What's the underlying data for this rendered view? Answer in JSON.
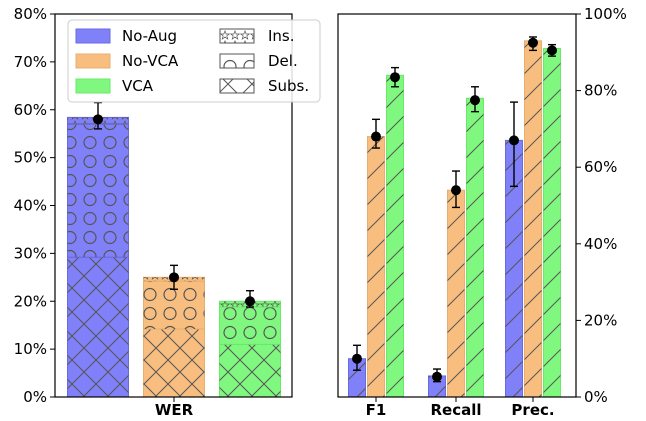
{
  "colors": {
    "No-Aug": "#8080f8",
    "No-VCA": "#f8be80",
    "VCA": "#80f880",
    "No-Aug-dark": "#6a6ae0",
    "No-VCA-dark": "#e8ae70",
    "VCA-dark": "#6ae86a",
    "hatch": "#555555",
    "errorbar": "#000000"
  },
  "legend": {
    "placement": "top-left of left panel",
    "methods": [
      "No-Aug",
      "No-VCA",
      "VCA"
    ],
    "error_types": [
      "Ins.",
      "Del.",
      "Subs."
    ]
  },
  "chart_data": [
    {
      "type": "bar",
      "stacked": true,
      "categories": [
        "WER"
      ],
      "ylim": [
        0,
        80
      ],
      "yticks": [
        "0%",
        "10%",
        "20%",
        "30%",
        "40%",
        "50%",
        "60%",
        "70%",
        "80%"
      ],
      "y_axis_side": "left",
      "grid": false,
      "series": [
        {
          "name": "No-Aug",
          "subs": 29.2,
          "del": 27.8,
          "ins": 1.4,
          "total": 58.4,
          "err_mean": 58.0,
          "err_lo": 56.0,
          "err_hi": 61.5
        },
        {
          "name": "No-VCA",
          "subs": 14.2,
          "del": 10.0,
          "ins": 0.8,
          "total": 25.0,
          "err_mean": 25.0,
          "err_lo": 22.5,
          "err_hi": 27.5
        },
        {
          "name": "VCA",
          "subs": 11.0,
          "del": 7.8,
          "ins": 1.2,
          "total": 20.0,
          "err_mean": 20.0,
          "err_lo": 18.8,
          "err_hi": 22.2
        }
      ]
    },
    {
      "type": "bar",
      "categories": [
        "F1",
        "Recall",
        "Prec."
      ],
      "ylim": [
        0,
        100
      ],
      "yticks": [
        "0%",
        "20%",
        "40%",
        "60%",
        "80%",
        "100%"
      ],
      "y_axis_side": "right",
      "grid": false,
      "series": [
        {
          "name": "No-Aug",
          "values": [
            10.0,
            5.5,
            67.0
          ],
          "markers": [
            10.0,
            5.3,
            67.0
          ],
          "err_lo": [
            7.0,
            4.0,
            55.0
          ],
          "err_hi": [
            13.5,
            7.3,
            77.0
          ]
        },
        {
          "name": "No-VCA",
          "values": [
            68.0,
            54.0,
            93.0
          ],
          "markers": [
            68.0,
            54.0,
            92.5
          ],
          "err_lo": [
            65.0,
            49.5,
            90.5
          ],
          "err_hi": [
            72.5,
            59.0,
            94.0
          ]
        },
        {
          "name": "VCA",
          "values": [
            84.0,
            78.0,
            91.0
          ],
          "markers": [
            83.5,
            77.5,
            90.5
          ],
          "err_lo": [
            81.0,
            74.5,
            89.0
          ],
          "err_hi": [
            86.0,
            81.0,
            92.0
          ]
        }
      ]
    }
  ]
}
